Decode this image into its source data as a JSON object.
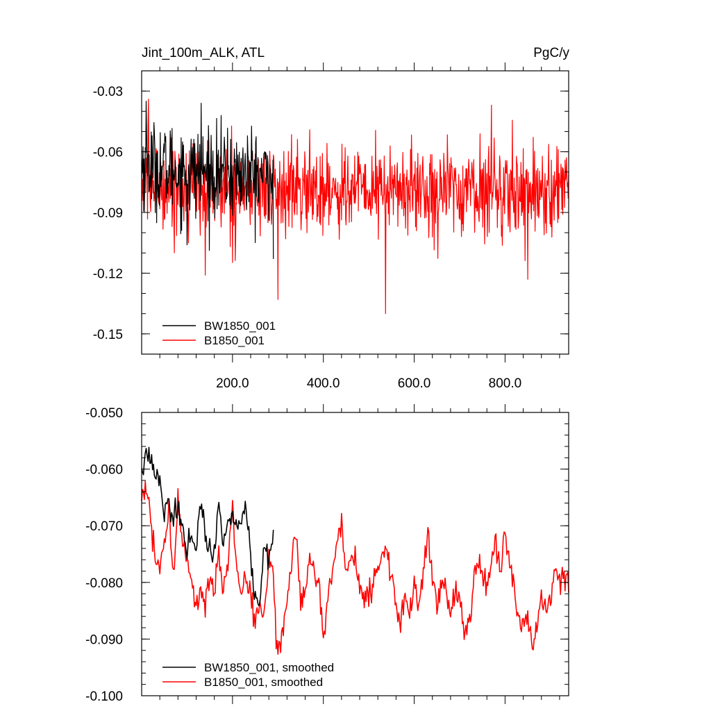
{
  "chart_data": [
    {
      "type": "line",
      "title": "Jint_100m_ALK, ATL",
      "units": "PgC/y",
      "xlim": [
        0,
        940
      ],
      "ylim": [
        -0.16,
        -0.02
      ],
      "x_ticks": [
        200,
        400,
        600,
        800
      ],
      "x_tick_labels": [
        "200.0",
        "400.0",
        "600.0",
        "800.0"
      ],
      "y_ticks": [
        -0.03,
        -0.06,
        -0.09,
        -0.12,
        -0.15
      ],
      "y_tick_labels": [
        "-0.03",
        "-0.06",
        "-0.09",
        "-0.12",
        "-0.15"
      ],
      "grid": false,
      "legend_position": "bottom-left",
      "series": [
        {
          "name": "BW1850_001",
          "color": "#000000",
          "x_range": [
            0,
            290
          ],
          "mean": -0.072,
          "sd": 0.011,
          "extremes": [
            [
              10,
              -0.035
            ],
            [
              131,
              -0.036
            ],
            [
              290,
              -0.113
            ],
            [
              100,
              -0.106
            ]
          ]
        },
        {
          "name": "B1850_001",
          "color": "#ff0000",
          "x_range": [
            0,
            940
          ],
          "mean": -0.079,
          "sd": 0.011,
          "extremes": [
            [
              15,
              -0.034
            ],
            [
              140,
              -0.121
            ],
            [
              300,
              -0.133
            ],
            [
              537,
              -0.14
            ],
            [
              770,
              -0.037
            ],
            [
              850,
              -0.123
            ]
          ]
        }
      ]
    },
    {
      "type": "line",
      "title": "",
      "xlim": [
        0,
        940
      ],
      "ylim": [
        -0.1,
        -0.05
      ],
      "y_ticks": [
        -0.05,
        -0.06,
        -0.07,
        -0.08,
        -0.09,
        -0.1
      ],
      "y_tick_labels": [
        "-0.050",
        "-0.060",
        "-0.070",
        "-0.080",
        "-0.090",
        "-0.100"
      ],
      "grid": false,
      "legend_position": "bottom-left",
      "series": [
        {
          "name": "BW1850_001, smoothed",
          "color": "#000000",
          "x": [
            0,
            10,
            20,
            30,
            40,
            50,
            60,
            70,
            80,
            90,
            100,
            110,
            120,
            130,
            140,
            150,
            160,
            170,
            180,
            190,
            200,
            210,
            220,
            230,
            240,
            250,
            260,
            270,
            280,
            290
          ],
          "y": [
            -0.06,
            -0.057,
            -0.058,
            -0.061,
            -0.062,
            -0.067,
            -0.066,
            -0.068,
            -0.067,
            -0.07,
            -0.076,
            -0.072,
            -0.074,
            -0.065,
            -0.071,
            -0.075,
            -0.074,
            -0.067,
            -0.072,
            -0.07,
            -0.068,
            -0.071,
            -0.069,
            -0.067,
            -0.076,
            -0.082,
            -0.083,
            -0.074,
            -0.076,
            -0.071
          ]
        },
        {
          "name": "B1850_001, smoothed",
          "color": "#ff0000",
          "x": [
            0,
            10,
            20,
            30,
            40,
            50,
            60,
            70,
            80,
            90,
            100,
            110,
            120,
            130,
            140,
            150,
            160,
            170,
            180,
            190,
            200,
            210,
            220,
            230,
            240,
            250,
            260,
            270,
            280,
            290,
            300,
            310,
            320,
            330,
            340,
            350,
            360,
            370,
            380,
            390,
            400,
            410,
            420,
            430,
            440,
            450,
            460,
            470,
            480,
            490,
            500,
            510,
            520,
            530,
            540,
            550,
            560,
            570,
            580,
            590,
            600,
            610,
            620,
            630,
            640,
            650,
            660,
            670,
            680,
            690,
            700,
            710,
            720,
            730,
            740,
            750,
            760,
            770,
            780,
            790,
            800,
            810,
            820,
            830,
            840,
            850,
            860,
            870,
            880,
            890,
            900,
            910,
            920,
            930,
            940
          ],
          "y": [
            -0.066,
            -0.063,
            -0.07,
            -0.076,
            -0.078,
            -0.073,
            -0.068,
            -0.079,
            -0.066,
            -0.074,
            -0.077,
            -0.08,
            -0.084,
            -0.081,
            -0.083,
            -0.079,
            -0.082,
            -0.075,
            -0.081,
            -0.076,
            -0.067,
            -0.078,
            -0.083,
            -0.079,
            -0.082,
            -0.088,
            -0.083,
            -0.087,
            -0.075,
            -0.079,
            -0.094,
            -0.089,
            -0.083,
            -0.077,
            -0.071,
            -0.084,
            -0.081,
            -0.076,
            -0.078,
            -0.08,
            -0.09,
            -0.082,
            -0.079,
            -0.073,
            -0.068,
            -0.079,
            -0.076,
            -0.075,
            -0.081,
            -0.083,
            -0.082,
            -0.08,
            -0.078,
            -0.075,
            -0.073,
            -0.079,
            -0.084,
            -0.088,
            -0.082,
            -0.085,
            -0.08,
            -0.085,
            -0.078,
            -0.071,
            -0.079,
            -0.084,
            -0.079,
            -0.082,
            -0.086,
            -0.081,
            -0.083,
            -0.09,
            -0.088,
            -0.081,
            -0.075,
            -0.078,
            -0.081,
            -0.076,
            -0.073,
            -0.079,
            -0.072,
            -0.077,
            -0.08,
            -0.086,
            -0.087,
            -0.085,
            -0.091,
            -0.088,
            -0.082,
            -0.085,
            -0.083,
            -0.077,
            -0.08,
            -0.079,
            -0.08
          ]
        }
      ]
    }
  ]
}
